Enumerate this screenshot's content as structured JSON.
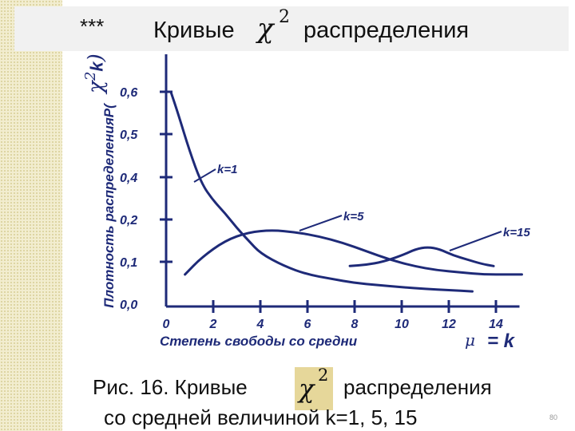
{
  "title": {
    "stars": "***",
    "word1": "Кривые",
    "chi": "χ",
    "chi_sup": "2",
    "word2": "распределения"
  },
  "chart_data": {
    "type": "line",
    "ylabel": "Плотность распределения",
    "ylabel_function": "P(",
    "ylabel_chi": "χ",
    "ylabel_sup": "2",
    "ylabel_sub": "k",
    "ylabel_close": ")",
    "xlabel": "Степень свободы со средни",
    "xlabel_mu": "μ",
    "xlabel_eq": "= k",
    "x_ticks": [
      "0",
      "2",
      "4",
      "6",
      "8",
      "10",
      "12",
      "14"
    ],
    "y_ticks": [
      "0,0",
      "0,1",
      "0,2",
      "0,4",
      "0,5",
      "0,6"
    ],
    "xlim": [
      0,
      15.5
    ],
    "series": [
      {
        "name": "k=1",
        "points": [
          [
            0.2,
            0.6
          ],
          [
            0.5,
            0.55
          ],
          [
            1,
            0.46
          ],
          [
            1.5,
            0.37
          ],
          [
            2,
            0.29
          ],
          [
            2.5,
            0.23
          ],
          [
            3,
            0.18
          ],
          [
            3.5,
            0.15
          ],
          [
            4,
            0.12
          ],
          [
            5,
            0.09
          ],
          [
            6,
            0.07
          ],
          [
            7,
            0.06
          ],
          [
            8,
            0.05
          ],
          [
            9,
            0.045
          ],
          [
            10,
            0.04
          ],
          [
            11,
            0.036
          ],
          [
            12,
            0.033
          ],
          [
            13,
            0.03
          ]
        ]
      },
      {
        "name": "k=5",
        "points": [
          [
            0.8,
            0.07
          ],
          [
            1.5,
            0.11
          ],
          [
            2.5,
            0.15
          ],
          [
            3.5,
            0.17
          ],
          [
            4.5,
            0.175
          ],
          [
            5.5,
            0.17
          ],
          [
            6.5,
            0.16
          ],
          [
            7.5,
            0.145
          ],
          [
            8.5,
            0.125
          ],
          [
            9.5,
            0.105
          ],
          [
            10.5,
            0.09
          ],
          [
            11.5,
            0.08
          ],
          [
            12.5,
            0.075
          ],
          [
            13.5,
            0.07
          ],
          [
            14.5,
            0.07
          ],
          [
            15.1,
            0.07
          ]
        ]
      },
      {
        "name": "k=15",
        "points": [
          [
            7.8,
            0.09
          ],
          [
            8.5,
            0.093
          ],
          [
            9.2,
            0.1
          ],
          [
            10,
            0.115
          ],
          [
            10.6,
            0.13
          ],
          [
            11.1,
            0.135
          ],
          [
            11.6,
            0.13
          ],
          [
            12.2,
            0.115
          ],
          [
            12.8,
            0.105
          ],
          [
            13.4,
            0.095
          ],
          [
            13.9,
            0.09
          ]
        ]
      }
    ],
    "annotations": [
      "k=1",
      "k=5",
      "k=15"
    ]
  },
  "caption": {
    "line1_part1": "Рис. 16. Кривые",
    "chi": "χ",
    "chi_sup": "2",
    "line1_part2": "распределения",
    "line2": "со средней величиной k=1,  5,  15"
  },
  "page_number": "80"
}
